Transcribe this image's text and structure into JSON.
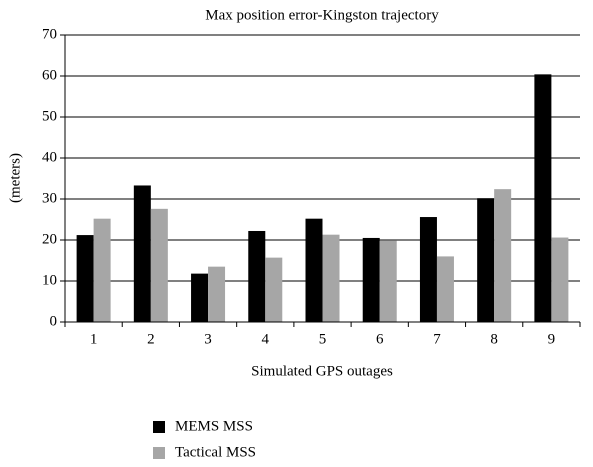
{
  "chart_data": {
    "type": "bar",
    "title": "Max position error-Kingston trajectory",
    "y_label": "(meters)",
    "x_label": "Simulated GPS outages",
    "categories": [
      "1",
      "2",
      "3",
      "4",
      "5",
      "6",
      "7",
      "8",
      "9"
    ],
    "series": [
      {
        "name": "MEMS MSS",
        "color": "#000000",
        "values": [
          21.2,
          33.3,
          11.8,
          22.2,
          25.2,
          20.5,
          25.6,
          30.2,
          60.4
        ]
      },
      {
        "name": "Tactical MSS",
        "color": "#a6a6a6",
        "values": [
          25.2,
          27.6,
          13.5,
          15.7,
          21.3,
          19.8,
          16,
          32.4,
          20.6
        ]
      }
    ],
    "ylim": [
      0,
      70
    ],
    "yticks": [
      0,
      10,
      20,
      30,
      40,
      50,
      60,
      70
    ],
    "grid": true,
    "legend": "bottom-left"
  }
}
